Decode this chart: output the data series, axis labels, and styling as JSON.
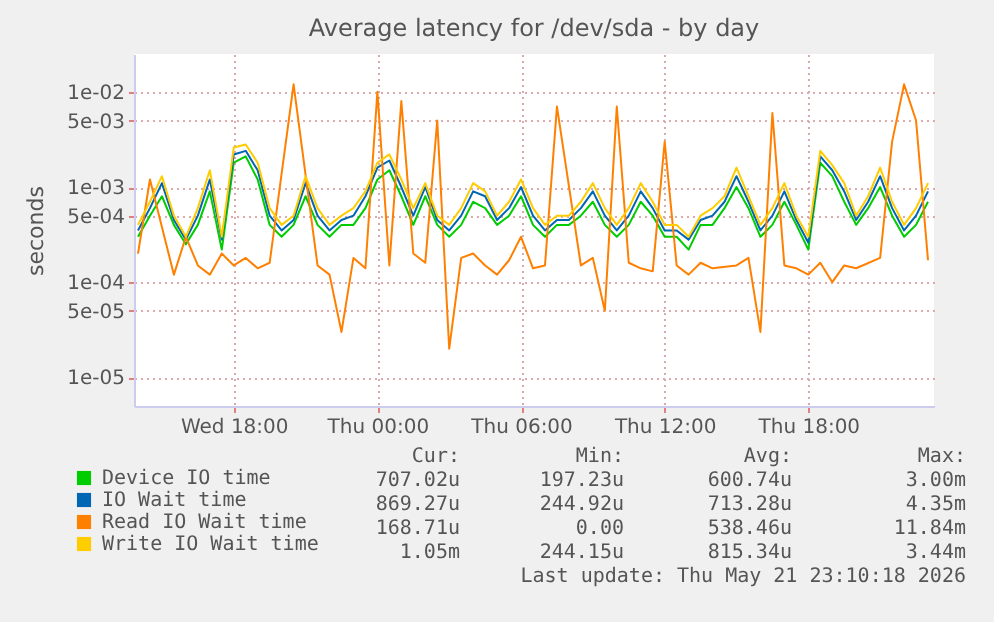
{
  "chart_data": {
    "type": "line",
    "title": "Average latency for /dev/sda - by day",
    "ylabel": "seconds",
    "log": true,
    "grid": true,
    "legend": "bottom",
    "x": [
      "2026-05-20T14:00",
      "2026-05-20T14:30",
      "2026-05-20T15:00",
      "2026-05-20T15:30",
      "2026-05-20T16:00",
      "2026-05-20T16:30",
      "2026-05-20T17:00",
      "2026-05-20T17:30",
      "2026-05-20T18:00",
      "2026-05-20T18:30",
      "2026-05-20T19:00",
      "2026-05-20T19:30",
      "2026-05-20T20:00",
      "2026-05-20T20:30",
      "2026-05-20T21:00",
      "2026-05-20T21:30",
      "2026-05-20T22:00",
      "2026-05-20T22:30",
      "2026-05-20T23:00",
      "2026-05-20T23:30",
      "2026-05-21T00:00",
      "2026-05-21T00:30",
      "2026-05-21T01:00",
      "2026-05-21T01:30",
      "2026-05-21T02:00",
      "2026-05-21T02:30",
      "2026-05-21T03:00",
      "2026-05-21T03:30",
      "2026-05-21T04:00",
      "2026-05-21T04:30",
      "2026-05-21T05:00",
      "2026-05-21T05:30",
      "2026-05-21T06:00",
      "2026-05-21T06:30",
      "2026-05-21T07:00",
      "2026-05-21T07:30",
      "2026-05-21T08:00",
      "2026-05-21T08:30",
      "2026-05-21T09:00",
      "2026-05-21T09:30",
      "2026-05-21T10:00",
      "2026-05-21T10:30",
      "2026-05-21T11:00",
      "2026-05-21T11:30",
      "2026-05-21T12:00",
      "2026-05-21T12:30",
      "2026-05-21T13:00",
      "2026-05-21T13:30",
      "2026-05-21T14:00",
      "2026-05-21T14:30",
      "2026-05-21T15:00",
      "2026-05-21T15:30",
      "2026-05-21T16:00",
      "2026-05-21T16:30",
      "2026-05-21T17:00",
      "2026-05-21T17:30",
      "2026-05-21T18:00",
      "2026-05-21T18:30",
      "2026-05-21T19:00",
      "2026-05-21T19:30",
      "2026-05-21T20:00",
      "2026-05-21T20:30",
      "2026-05-21T21:00",
      "2026-05-21T21:30",
      "2026-05-21T22:00",
      "2026-05-21T22:30",
      "2026-05-21T23:00"
    ],
    "xlim": [
      "2026-05-20T13:50",
      "2026-05-21T23:15"
    ],
    "xticks": [
      {
        "value": "2026-05-20T18:00",
        "label": "Wed 18:00"
      },
      {
        "value": "2026-05-21T00:00",
        "label": "Thu 00:00"
      },
      {
        "value": "2026-05-21T06:00",
        "label": "Thu 06:00"
      },
      {
        "value": "2026-05-21T12:00",
        "label": "Thu 12:00"
      },
      {
        "value": "2026-05-21T18:00",
        "label": "Thu 18:00"
      }
    ],
    "ylim": [
      5e-06,
      0.025
    ],
    "yticks": [
      {
        "value": 1e-05,
        "label": "1e-05"
      },
      {
        "value": 5e-05,
        "label": "5e-05"
      },
      {
        "value": 0.0001,
        "label": "1e-04"
      },
      {
        "value": 0.0005,
        "label": "5e-04"
      },
      {
        "value": 0.001,
        "label": "1e-03"
      },
      {
        "value": 0.005,
        "label": "5e-03"
      },
      {
        "value": 0.01,
        "label": "1e-02"
      }
    ],
    "series": [
      {
        "name": "Device IO time",
        "color": "#00cc00",
        "values": [
          0.0003,
          0.0005,
          0.0008,
          0.0004,
          0.00025,
          0.0004,
          0.0009,
          0.00022,
          0.0018,
          0.0021,
          0.0012,
          0.0004,
          0.0003,
          0.0004,
          0.0008,
          0.0004,
          0.0003,
          0.0004,
          0.0004,
          0.0006,
          0.0012,
          0.0015,
          0.0008,
          0.0004,
          0.0008,
          0.0004,
          0.0003,
          0.0004,
          0.0007,
          0.0006,
          0.0004,
          0.0005,
          0.0008,
          0.0004,
          0.0003,
          0.0004,
          0.0004,
          0.0005,
          0.0007,
          0.0004,
          0.0003,
          0.0004,
          0.0007,
          0.0005,
          0.0003,
          0.0003,
          0.00022,
          0.0004,
          0.0004,
          0.0006,
          0.001,
          0.0006,
          0.0003,
          0.0004,
          0.0007,
          0.0004,
          0.00022,
          0.0018,
          0.0013,
          0.0007,
          0.0004,
          0.0006,
          0.001,
          0.0005,
          0.0003,
          0.0004,
          0.0007
        ]
      },
      {
        "name": "IO Wait time",
        "color": "#0066b3",
        "values": [
          0.00035,
          0.0006,
          0.0011,
          0.00045,
          0.00028,
          0.0005,
          0.0012,
          0.00028,
          0.0022,
          0.0024,
          0.0015,
          0.0005,
          0.00035,
          0.00045,
          0.0011,
          0.0005,
          0.00035,
          0.00045,
          0.0005,
          0.0008,
          0.0016,
          0.0019,
          0.001,
          0.0005,
          0.001,
          0.00045,
          0.00035,
          0.0005,
          0.0009,
          0.0008,
          0.00045,
          0.0006,
          0.001,
          0.0005,
          0.00035,
          0.00045,
          0.00045,
          0.0006,
          0.0009,
          0.0005,
          0.00035,
          0.0005,
          0.0009,
          0.0006,
          0.00035,
          0.00035,
          0.00028,
          0.00045,
          0.0005,
          0.0007,
          0.0013,
          0.0007,
          0.00035,
          0.0005,
          0.0009,
          0.00045,
          0.00026,
          0.0021,
          0.0015,
          0.0009,
          0.00045,
          0.0007,
          0.0013,
          0.0006,
          0.00035,
          0.0005,
          0.0009
        ]
      },
      {
        "name": "Read IO Wait time",
        "color": "#ff8000",
        "values": [
          0.0002,
          0.0012,
          null,
          0.00012,
          0.0003,
          0.00015,
          0.00012,
          0.0002,
          0.00015,
          0.00018,
          0.00014,
          0.00016,
          null,
          0.012,
          null,
          0.00015,
          0.00012,
          3e-05,
          0.00018,
          0.00014,
          0.01,
          0.00015,
          0.008,
          0.0002,
          0.00016,
          0.005,
          2e-05,
          0.00018,
          0.0002,
          0.00015,
          0.00012,
          0.00017,
          0.0003,
          0.00014,
          0.00015,
          0.007,
          null,
          0.00015,
          0.00018,
          5e-05,
          0.007,
          0.00016,
          0.00014,
          0.00013,
          0.003,
          0.00015,
          0.00012,
          0.00016,
          0.00014,
          null,
          0.00015,
          0.00018,
          3e-05,
          0.006,
          0.00015,
          0.00014,
          0.00012,
          0.00016,
          0.0001,
          0.00015,
          0.00014,
          null,
          0.00018,
          0.003,
          0.012,
          0.005,
          0.00017
        ]
      },
      {
        "name": "Write IO Wait time",
        "color": "#ffcc00",
        "values": [
          0.0004,
          0.0007,
          0.0013,
          0.0005,
          0.0003,
          0.0006,
          0.0015,
          0.0003,
          0.0026,
          0.0028,
          0.0018,
          0.0006,
          0.0004,
          0.0005,
          0.0013,
          0.0006,
          0.0004,
          0.0005,
          0.0006,
          0.0009,
          0.0018,
          0.0022,
          0.0012,
          0.0006,
          0.0011,
          0.0005,
          0.0004,
          0.0006,
          0.0011,
          0.0009,
          0.0005,
          0.0007,
          0.0012,
          0.0006,
          0.0004,
          0.0005,
          0.0005,
          0.0007,
          0.0011,
          0.0006,
          0.0004,
          0.0006,
          0.0011,
          0.0007,
          0.0004,
          0.0004,
          0.0003,
          0.0005,
          0.0006,
          0.0008,
          0.0016,
          0.0008,
          0.0004,
          0.0006,
          0.0011,
          0.0005,
          0.0003,
          0.0024,
          0.0017,
          0.0011,
          0.0005,
          0.0008,
          0.0016,
          0.0007,
          0.0004,
          0.0006,
          0.0011
        ]
      }
    ],
    "annotations": [
      "Cur:",
      "Min:",
      "Avg:",
      "Max:",
      "707.02u",
      "197.23u",
      "600.74u",
      "3.00m",
      "869.27u",
      "244.92u",
      "713.28u",
      "4.35m",
      "168.71u",
      "0.00",
      "538.46u",
      "11.84m",
      "1.05m",
      "244.15u",
      "815.34u",
      "3.44m",
      "Last update: Thu May 21 23:10:18 2026"
    ]
  }
}
